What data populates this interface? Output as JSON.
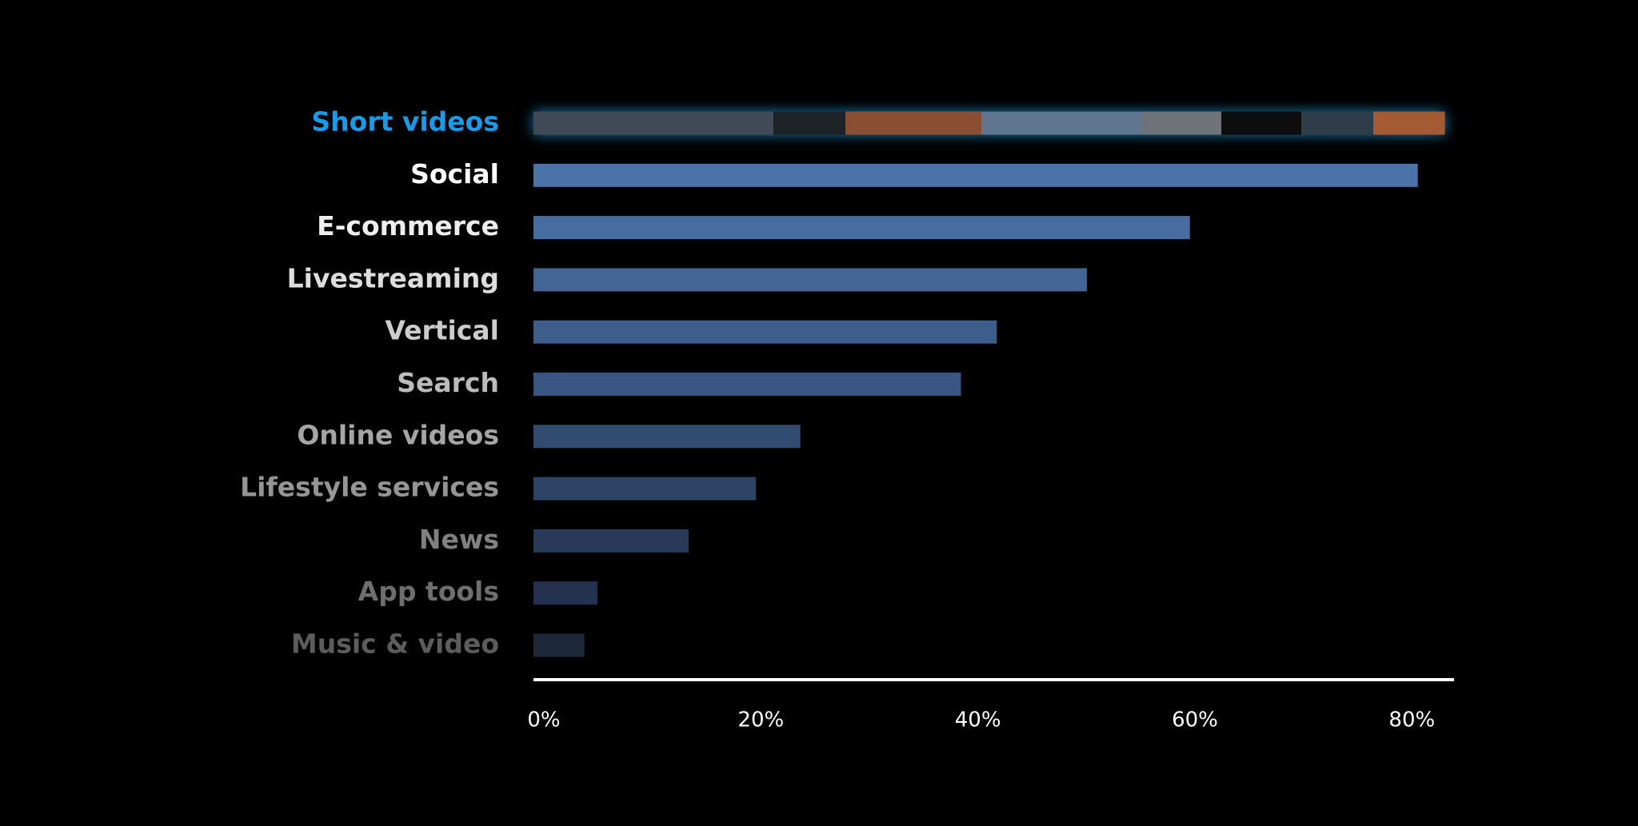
{
  "chart_data": {
    "type": "barh",
    "categories": [
      "Short videos",
      "Social",
      "E-commerce",
      "Livestreaming",
      "Vertical",
      "Search",
      "Online videos",
      "Lifestyle services",
      "News",
      "App tools",
      "Music & video"
    ],
    "values": [
      84,
      81.5,
      60.5,
      51,
      42.7,
      39.4,
      24.6,
      20.5,
      14.3,
      5.9,
      4.7
    ],
    "colors": [
      "url(#mosaic)",
      "#4a73aa",
      "#466ca0",
      "#426596",
      "#3d5d8b",
      "#395581",
      "#324b71",
      "#2d4466",
      "#283a57",
      "#243250",
      "#1d2838"
    ],
    "label_colors": [
      "#1a9be8",
      "#ffffff",
      "#eeeeee",
      "#dddddd",
      "#cccccc",
      "#bbbbbb",
      "#a5a5a5",
      "#959595",
      "#808080",
      "#6e6e6e",
      "#5c5c5c"
    ],
    "xlim": [
      0,
      84.4
    ],
    "xticks": [
      {
        "value": 0,
        "label": "0%"
      },
      {
        "value": 20,
        "label": "20%"
      },
      {
        "value": 40,
        "label": "40%"
      },
      {
        "value": 60,
        "label": "60%"
      },
      {
        "value": 80,
        "label": "80%"
      }
    ]
  }
}
